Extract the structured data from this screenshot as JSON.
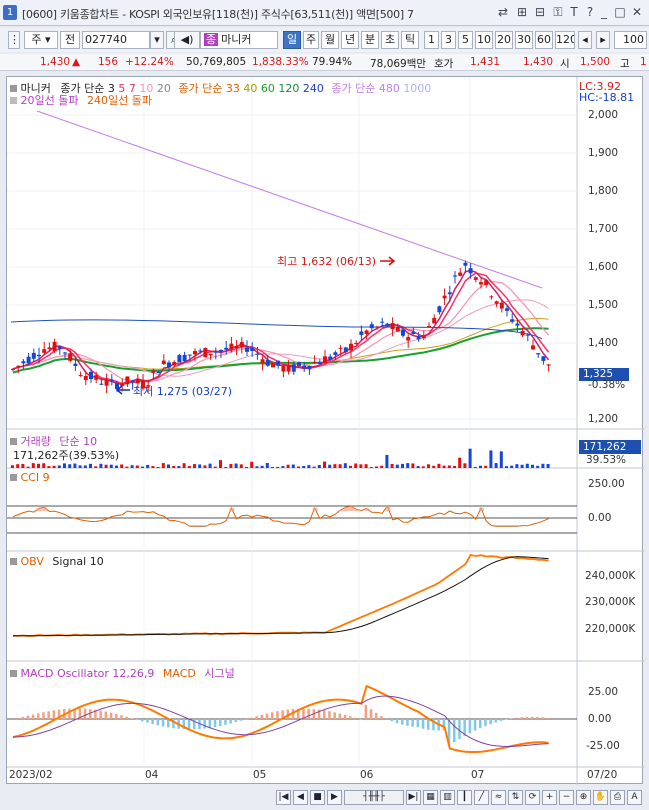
{
  "window": {
    "badge": "1",
    "title": "[0600] 키움종합차트 - KOSPI 외국인보유[118(천)] 주식수[63,511(천)] 액면[500] 7"
  },
  "toolbar": {
    "period_prefix": "주",
    "prev": "전",
    "code": "027740",
    "name": "마니커",
    "periods": [
      "일",
      "주",
      "월",
      "년",
      "분",
      "초",
      "틱"
    ],
    "selected_period": "일",
    "numbers": [
      "1",
      "3",
      "5",
      "10",
      "20",
      "30",
      "60",
      "120"
    ],
    "count": "100"
  },
  "price": {
    "current": "1,430",
    "change": "156",
    "change_pct": "+12.24%",
    "volume": "50,769,805",
    "vol_ratio": "1,838.33%",
    "turnover": "79.94%",
    "amount": "78,069백만",
    "quote_label": "호가",
    "ask": "1,431",
    "bid": "1,430",
    "open_label": "시",
    "open": "1,500",
    "high_label": "고",
    "high": "1"
  },
  "legend": {
    "name": "마니커",
    "ma_short": "종가 단순 3",
    "p5": "5",
    "p7": "7",
    "p10": "10",
    "p20": "20",
    "ma_mid": "종가 단순 33",
    "p40": "40",
    "p60": "60",
    "p120": "120",
    "p240": "240",
    "ma_long": "종가 단순 480",
    "p1000": "1000",
    "break20": "20일선 돌파",
    "break240": "240일선 돌파",
    "lc": "LC:3.92",
    "hc": "HC:-18.81"
  },
  "annotations": {
    "high": "최고 1,632 (06/13)",
    "low": "최저 1,275 (03/27)"
  },
  "price_axis": [
    "2,000",
    "1,900",
    "1,800",
    "1,700",
    "1,600",
    "1,500",
    "1,400",
    "1,200"
  ],
  "current_tag": {
    "price": "1,325",
    "pct": "-0.38%"
  },
  "volume_panel": {
    "title": "거래량",
    "ma": "단순 10",
    "value": "171,262주(39.53%)",
    "tag": "171,262",
    "tag_pct": "39.53%"
  },
  "cci_panel": {
    "title": "CCI 9",
    "axis": [
      "250.00",
      "0.00"
    ]
  },
  "obv_panel": {
    "title": "OBV",
    "signal": "Signal 10",
    "axis": [
      "240,000K",
      "230,000K",
      "220,000K"
    ]
  },
  "macd_panel": {
    "title": "MACD Oscillator 12,26,9",
    "macd": "MACD",
    "signal": "시그널",
    "axis": [
      "25.00",
      "0.00",
      "-25.00"
    ]
  },
  "xaxis": [
    "2023/02",
    "04",
    "05",
    "06",
    "07",
    "07/20"
  ],
  "bottom": {
    "nav": [
      "|◀",
      "◀",
      "■",
      "▶",
      "▶|"
    ]
  },
  "colors": {
    "up": "#e01010",
    "down": "#1446d8",
    "ma3": "#ff3060",
    "ma20": "#c83878",
    "ma120": "#18a030",
    "ma480": "#c080e8",
    "orange": "#ff7a00"
  },
  "chart_data": [
    {
      "type": "candlestick",
      "title": "마니커",
      "x_range": [
        "2023/02",
        "07/20"
      ],
      "ylim": [
        1150,
        2050
      ],
      "high": {
        "value": 1632,
        "date": "06/13"
      },
      "low": {
        "value": 1275,
        "date": "03/27"
      },
      "current": 1325,
      "moving_averages": [
        "3",
        "5",
        "7",
        "10",
        "20",
        "33",
        "40",
        "60",
        "120",
        "240",
        "480",
        "1000"
      ]
    },
    {
      "type": "bar",
      "title": "거래량",
      "last": 171262
    },
    {
      "type": "line",
      "title": "CCI 9",
      "ylim": [
        -120,
        330
      ]
    },
    {
      "type": "line",
      "title": "OBV",
      "ylim": [
        210000,
        250000
      ]
    },
    {
      "type": "bar",
      "title": "MACD Oscillator 12,26,9",
      "ylim": [
        -45,
        50
      ]
    }
  ]
}
